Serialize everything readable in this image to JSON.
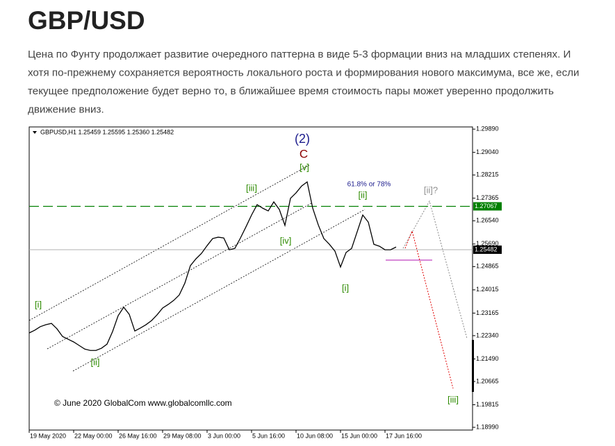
{
  "title": "GBP/USD",
  "paragraph_lines": [
    "Цена по Фунту продолжает развитие очередного паттерна в виде 5-3 формации вниз на младших степенях. И",
    "хотя по-прежнему сохраняется вероятность локального роста и формирования нового максимума, все же, если",
    "текущее предположение будет верно то, в ближайшее время стоимость пары может уверенно продолжить",
    "движение вниз."
  ],
  "chart_data": {
    "type": "line",
    "header": "GBPUSD,H1  1.25459 1.25595 1.25360 1.25482",
    "copyright": "© June 2020 GlobalCom www.globalcomllc.com",
    "color": "#000000",
    "categories": [
      "19 May 2020",
      null,
      null,
      null,
      null,
      null,
      null,
      null,
      "22 May 00:00",
      null,
      null,
      null,
      null,
      null,
      null,
      null,
      "26 May 16:00",
      null,
      null,
      null,
      null,
      null,
      null,
      null,
      "29 May 08:00",
      null,
      null,
      null,
      null,
      null,
      null,
      null,
      "3 Jun 00:00",
      null,
      null,
      null,
      null,
      null,
      null,
      null,
      "5 Jun 16:00",
      null,
      null,
      null,
      null,
      null,
      null,
      null,
      "10 Jun 08:00",
      null,
      null,
      null,
      null,
      null,
      null,
      null,
      "15 Jun 00:00",
      null,
      null,
      null,
      null,
      null,
      null,
      null,
      "17 Jun 16:00",
      null,
      null
    ],
    "values": [
      1.2244,
      1.2254,
      1.2267,
      1.2274,
      1.2279,
      1.2259,
      1.2231,
      1.2221,
      1.2211,
      1.2198,
      1.2185,
      1.218,
      1.218,
      1.2188,
      1.2203,
      1.2249,
      1.2307,
      1.2338,
      1.2312,
      1.2251,
      1.2262,
      1.2274,
      1.2289,
      1.231,
      1.2335,
      1.2348,
      1.2363,
      1.2383,
      1.2426,
      1.249,
      1.2515,
      1.2535,
      1.2563,
      1.2589,
      1.2594,
      1.2591,
      1.2548,
      1.2553,
      1.2591,
      1.2632,
      1.2675,
      1.2713,
      1.27,
      1.269,
      1.2723,
      1.2695,
      1.2637,
      1.2736,
      1.2756,
      1.2781,
      1.2796,
      1.27,
      1.2639,
      1.2589,
      1.2568,
      1.2543,
      1.2485,
      1.2538,
      1.2553,
      1.2614,
      1.2675,
      1.2649,
      1.2568,
      1.2561,
      1.2548,
      1.2548,
      1.2558
    ],
    "ylim": [
      1.1889,
      1.2997
    ],
    "yticks": [
      {
        "value": 1.2989,
        "label": "1.29890"
      },
      {
        "value": 1.2904,
        "label": "1.29040"
      },
      1.28215,
      1.27365,
      {
        "value": 1.2654,
        "label": "1.26540"
      },
      {
        "value": 1.2569,
        "label": "1.25690"
      },
      1.24865,
      1.24015,
      1.23165,
      {
        "value": 1.2234,
        "label": "1.22340"
      },
      {
        "value": 1.2149,
        "label": "1.21490"
      },
      1.20665,
      1.19815,
      {
        "value": 1.1899,
        "label": "1.18990"
      }
    ],
    "levels": [
      {
        "value": 1.27067,
        "color": "#008000"
      },
      {
        "value": 1.25482,
        "color": "#b0b0b0"
      }
    ],
    "annotations": [
      {
        "text": "(2)",
        "color": "#1a1a8c"
      },
      {
        "text": "C",
        "color": "#8b0000"
      },
      {
        "text": "[v]",
        "color": "#2e8b00"
      },
      {
        "text": "[iii]",
        "color": "#2e8b00"
      },
      {
        "text": "[iv]",
        "color": "#2e8b00"
      },
      {
        "text": "[ii]",
        "color": "#2e8b00"
      },
      {
        "text": "[i]",
        "color": "#2e8b00"
      },
      {
        "text": "[i]",
        "color": "#2e8b00"
      },
      {
        "text": "[ii]",
        "color": "#2e8b00"
      },
      {
        "text": "[ii]?",
        "color": "#909090"
      },
      {
        "text": "[iii]",
        "color": "#2e8b00"
      },
      {
        "text": "61.8% or 78%",
        "color": "#1a1a8c"
      }
    ]
  }
}
